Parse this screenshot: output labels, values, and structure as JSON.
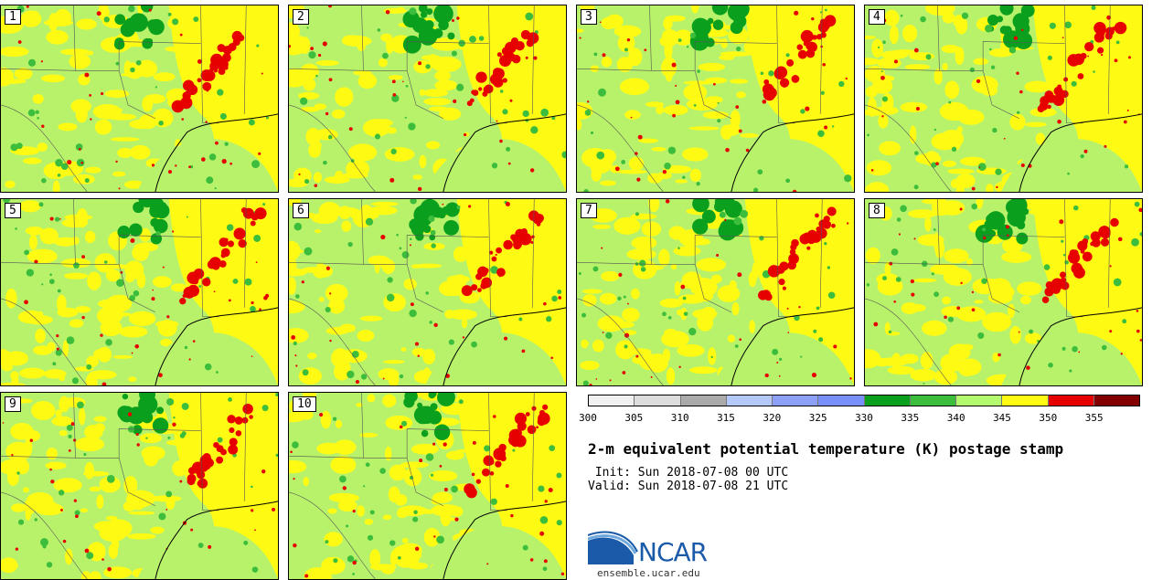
{
  "title": "2-m equivalent potential temperature (K) postage stamp",
  "init_line": " Init: Sun 2018-07-08 00 UTC",
  "valid_line": "Valid: Sun 2018-07-08 21 UTC",
  "logo_text": "NCAR",
  "url": "ensemble.ucar.edu",
  "members": [
    "1",
    "2",
    "3",
    "4",
    "5",
    "6",
    "7",
    "8",
    "9",
    "10"
  ],
  "colorbar": {
    "ticks": [
      "300",
      "305",
      "310",
      "315",
      "320",
      "325",
      "330",
      "335",
      "340",
      "345",
      "350",
      "355"
    ],
    "colors": [
      "#f0f0f0",
      "#dcdcdc",
      "#aaaaaa",
      "#b4c8fa",
      "#8ca0fa",
      "#7890fa",
      "#0aa01e",
      "#3cbe3c",
      "#b4fa6e",
      "#fffa14",
      "#e60000",
      "#820000"
    ]
  },
  "map_colors": {
    "light_green": "#b8f26a",
    "yellow": "#fffa14",
    "red": "#e60000",
    "green": "#3cbe3c",
    "dark_green": "#0aa01e"
  }
}
